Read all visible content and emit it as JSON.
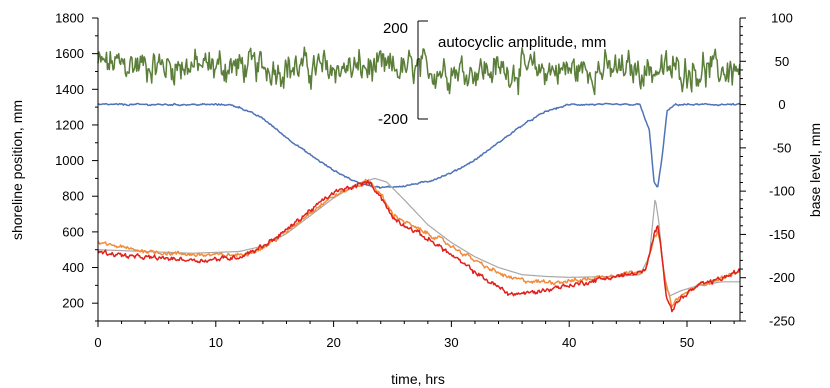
{
  "chart_data": {
    "type": "line",
    "xlabel": "time, hrs",
    "ylabel_left": "shoreline position, mm",
    "ylabel_right": "base level, mm",
    "xlim": [
      0,
      54.5
    ],
    "ylim_left": [
      100,
      1800
    ],
    "ylim_right": [
      -250,
      100
    ],
    "x_ticks": [
      0,
      10,
      20,
      30,
      40,
      50
    ],
    "y_left_ticks": [
      200,
      400,
      600,
      800,
      1000,
      1200,
      1400,
      1600,
      1800
    ],
    "y_right_ticks": [
      -250,
      -200,
      -150,
      -100,
      -50,
      0,
      50,
      100
    ],
    "grid": false,
    "inset_axis": {
      "label": "autocyclic amplitude, mm",
      "top_label": "200",
      "bottom_label": "-200",
      "range": [
        -200,
        200
      ]
    },
    "series": [
      {
        "axis": "right",
        "color": "#5b7f3a",
        "noise": 28,
        "x": [
          0,
          5,
          10,
          15,
          20,
          25,
          30,
          35,
          40,
          45,
          50,
          54.5
        ],
        "y": [
          47,
          45,
          44,
          43,
          42,
          41,
          40,
          40,
          40,
          40,
          40,
          40
        ]
      },
      {
        "axis": "right",
        "color": "#4f73b8",
        "noise": 1.5,
        "x": [
          0,
          11,
          12,
          14,
          16,
          18,
          20,
          22,
          24,
          26,
          28,
          30,
          32,
          34,
          36,
          38,
          40,
          46,
          46.8,
          47.2,
          47.5,
          47.9,
          48.3,
          49,
          54.5
        ],
        "y": [
          0,
          0,
          -3,
          -16,
          -38,
          -58,
          -76,
          -90,
          -96,
          -94,
          -89,
          -79,
          -64,
          -44,
          -24,
          -8,
          0,
          0,
          -30,
          -88,
          -97,
          -60,
          -8,
          0,
          0
        ]
      },
      {
        "axis": "left",
        "color": "#a8a8a8",
        "noise": 0,
        "x": [
          0,
          4,
          8,
          12,
          14,
          16,
          18,
          20,
          22,
          23.5,
          24.5,
          26,
          28,
          30,
          32,
          34,
          36,
          38,
          40,
          44,
          46,
          46.8,
          47.3,
          47.6,
          48,
          48.5,
          49.5,
          51,
          53,
          54.5
        ],
        "y": [
          500,
          490,
          480,
          490,
          520,
          590,
          690,
          790,
          870,
          900,
          880,
          780,
          640,
          540,
          460,
          400,
          360,
          350,
          345,
          350,
          360,
          460,
          790,
          660,
          380,
          240,
          270,
          300,
          320,
          320
        ]
      },
      {
        "axis": "left",
        "color": "#f28c3c",
        "noise": 18,
        "x": [
          0,
          3,
          6,
          9,
          12,
          14,
          16,
          18,
          20,
          22,
          23,
          24,
          25,
          27,
          29,
          31,
          33,
          35,
          37,
          39,
          41,
          43,
          45,
          46.5,
          47.2,
          47.5,
          47.8,
          48.2,
          48.7,
          49.5,
          51,
          53,
          54.5
        ],
        "y": [
          540,
          500,
          480,
          470,
          470,
          510,
          600,
          710,
          800,
          860,
          890,
          810,
          700,
          620,
          560,
          480,
          400,
          340,
          320,
          320,
          330,
          350,
          370,
          390,
          560,
          610,
          500,
          300,
          190,
          240,
          300,
          340,
          380
        ]
      },
      {
        "axis": "left",
        "color": "#e0201b",
        "noise": 20,
        "x": [
          0,
          3,
          6,
          9,
          12,
          14,
          16,
          18,
          20,
          22,
          23,
          24,
          25,
          27,
          29,
          31,
          33,
          35,
          37,
          39,
          41,
          43,
          45,
          46.5,
          47.2,
          47.5,
          47.8,
          48.2,
          48.7,
          49.5,
          51,
          53,
          54.5
        ],
        "y": [
          490,
          460,
          450,
          440,
          460,
          520,
          610,
          720,
          820,
          860,
          880,
          800,
          680,
          600,
          520,
          420,
          330,
          250,
          260,
          290,
          310,
          340,
          360,
          380,
          580,
          630,
          530,
          260,
          160,
          230,
          300,
          340,
          380
        ]
      }
    ]
  }
}
